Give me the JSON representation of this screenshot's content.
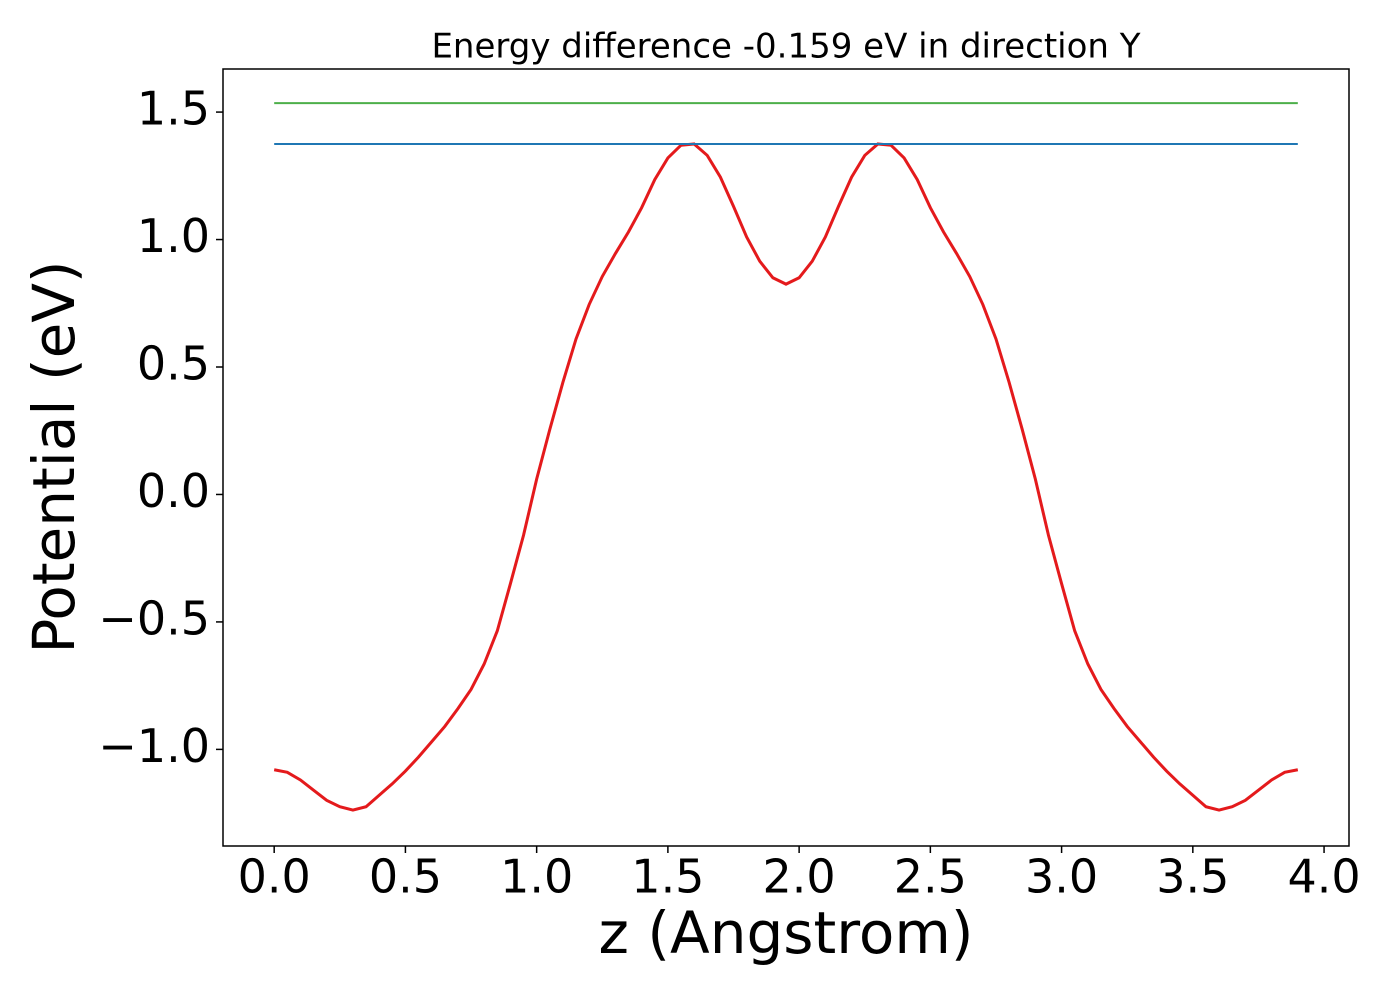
{
  "chart_data": {
    "type": "line",
    "title": "Energy difference -0.159 eV in direction Y",
    "x_label": "z (Angstrom)",
    "y_label": "Potential (eV)",
    "xlim": [
      -0.195,
      4.095
    ],
    "ylim": [
      -1.379,
      1.669
    ],
    "xticks": [
      {
        "value": 0,
        "label": "0.0"
      },
      {
        "value": 0.5,
        "label": "0.5"
      },
      {
        "value": 1,
        "label": "1.0"
      },
      {
        "value": 1.5,
        "label": "1.5"
      },
      {
        "value": 2,
        "label": "2.0"
      },
      {
        "value": 2.5,
        "label": "2.5"
      },
      {
        "value": 3,
        "label": "3.0"
      },
      {
        "value": 3.5,
        "label": "3.5"
      },
      {
        "value": 4,
        "label": "4.0"
      }
    ],
    "yticks": [
      {
        "value": -1,
        "label": "−1.0"
      },
      {
        "value": -0.5,
        "label": "−0.5"
      },
      {
        "value": 0,
        "label": "0.0"
      },
      {
        "value": 0.5,
        "label": "0.5"
      },
      {
        "value": 1,
        "label": "1.0"
      },
      {
        "value": 1.5,
        "label": "1.5"
      }
    ],
    "grid": false,
    "series": [
      {
        "color": "#e41a1c",
        "x": [
          0,
          0.05,
          0.1,
          0.15,
          0.2,
          0.25,
          0.3,
          0.35,
          0.4,
          0.45,
          0.5,
          0.55,
          0.6,
          0.65,
          0.7,
          0.75,
          0.8,
          0.85,
          0.9,
          0.95,
          1,
          1.05,
          1.1,
          1.15,
          1.2,
          1.25,
          1.3,
          1.35,
          1.4,
          1.45,
          1.5,
          1.55,
          1.6,
          1.65,
          1.7,
          1.75,
          1.8,
          1.85,
          1.9,
          1.95,
          2,
          2.05,
          2.1,
          2.15,
          2.2,
          2.25,
          2.3,
          2.35,
          2.4,
          2.45,
          2.5,
          2.55,
          2.6,
          2.65,
          2.7,
          2.75,
          2.8,
          2.85,
          2.9,
          2.95,
          3,
          3.05,
          3.1,
          3.15,
          3.2,
          3.25,
          3.3,
          3.35,
          3.4,
          3.45,
          3.5,
          3.55,
          3.6,
          3.65,
          3.7,
          3.75,
          3.8,
          3.85,
          3.9
        ],
        "values": [
          -1.08,
          -1.09,
          -1.12,
          -1.16,
          -1.2,
          -1.225,
          -1.238,
          -1.225,
          -1.18,
          -1.135,
          -1.085,
          -1.03,
          -0.97,
          -0.91,
          -0.84,
          -0.765,
          -0.665,
          -0.535,
          -0.35,
          -0.16,
          0.06,
          0.255,
          0.44,
          0.61,
          0.745,
          0.855,
          0.945,
          1.03,
          1.125,
          1.235,
          1.32,
          1.37,
          1.375,
          1.33,
          1.245,
          1.13,
          1.01,
          0.915,
          0.85,
          0.825,
          0.85,
          0.915,
          1.01,
          1.13,
          1.245,
          1.33,
          1.375,
          1.37,
          1.32,
          1.235,
          1.125,
          1.03,
          0.945,
          0.855,
          0.745,
          0.61,
          0.44,
          0.255,
          0.06,
          -0.16,
          -0.35,
          -0.535,
          -0.665,
          -0.765,
          -0.84,
          -0.91,
          -0.97,
          -1.03,
          -1.085,
          -1.135,
          -1.18,
          -1.225,
          -1.238,
          -1.225,
          -1.2,
          -1.16,
          -1.12,
          -1.09,
          -1.08
        ]
      },
      {
        "color": "#1f77b4",
        "x": [
          0,
          3.9
        ],
        "values": [
          1.375,
          1.375
        ]
      },
      {
        "color": "#4daf4a",
        "x": [
          0,
          3.9
        ],
        "values": [
          1.535,
          1.535
        ]
      }
    ]
  }
}
